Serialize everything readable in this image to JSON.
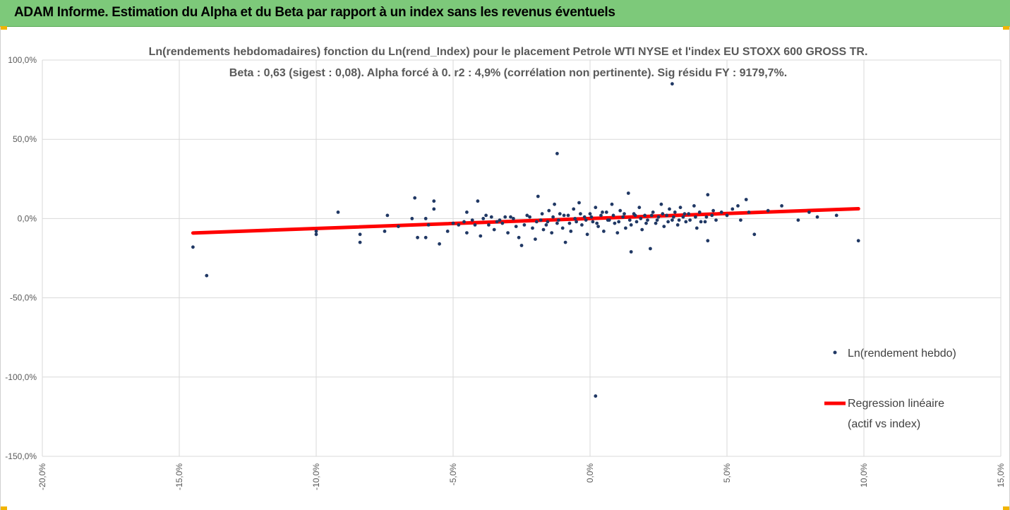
{
  "header": {
    "title": "ADAM Informe. Estimation du Alpha et du Beta par rapport à un index sans les revenus éventuels"
  },
  "chart_data": {
    "type": "scatter",
    "title_line1": "Ln(rendements hebdomadaires) fonction du Ln(rend_Index) pour le placement Petrole WTI NYSE et l'index EU STOXX 600 GROSS TR.",
    "title_line2": "Beta : 0,63 (sigest : 0,08).  Alpha forcé à 0. r2 : 4,9% (corrélation non pertinente). Sig résidu FY : 9179,7%.",
    "xlim": [
      -20,
      15
    ],
    "ylim": [
      -150,
      100
    ],
    "x_ticks": [
      "-20,0%",
      "-15,0%",
      "-10,0%",
      "-5,0%",
      "0,0%",
      "5,0%",
      "10,0%",
      "15,0%"
    ],
    "y_ticks": [
      "100,0%",
      "50,0%",
      "0,0%",
      "-50,0%",
      "-100,0%",
      "-150,0%"
    ],
    "grid": true,
    "legend_position": "right",
    "series": [
      {
        "name": "Ln(rendement hebdo)",
        "color": "#203864",
        "points": [
          [
            -14.5,
            -18
          ],
          [
            -14.0,
            -36
          ],
          [
            -10.0,
            -8
          ],
          [
            -10.0,
            -10
          ],
          [
            -9.2,
            4
          ],
          [
            -8.4,
            -10
          ],
          [
            -8.4,
            -15
          ],
          [
            -7.5,
            -8
          ],
          [
            -7.4,
            2
          ],
          [
            -7.0,
            -5
          ],
          [
            -6.5,
            0
          ],
          [
            -6.4,
            13
          ],
          [
            -6.3,
            -12
          ],
          [
            -6.0,
            -12
          ],
          [
            -6.0,
            0
          ],
          [
            -5.9,
            -4
          ],
          [
            -5.7,
            11
          ],
          [
            -5.7,
            6
          ],
          [
            -5.5,
            -16
          ],
          [
            -5.2,
            -8
          ],
          [
            -5.0,
            -3
          ],
          [
            -4.8,
            -4
          ],
          [
            -4.6,
            -2
          ],
          [
            -4.5,
            -9
          ],
          [
            -4.5,
            4
          ],
          [
            -4.2,
            -4
          ],
          [
            -4.1,
            11
          ],
          [
            -4.0,
            -11
          ],
          [
            -3.8,
            2
          ],
          [
            -3.7,
            -4
          ],
          [
            -3.5,
            -7
          ],
          [
            -3.4,
            -2
          ],
          [
            -3.2,
            -3
          ],
          [
            -3.0,
            -9
          ],
          [
            -2.9,
            1
          ],
          [
            -2.7,
            -5
          ],
          [
            -2.6,
            -12
          ],
          [
            -2.5,
            -17
          ],
          [
            -2.4,
            -4
          ],
          [
            -2.3,
            2
          ],
          [
            -2.1,
            -6
          ],
          [
            -2.0,
            -13
          ],
          [
            -1.9,
            14
          ],
          [
            -1.8,
            -1
          ],
          [
            -1.7,
            -7
          ],
          [
            -1.6,
            -4
          ],
          [
            -1.5,
            5
          ],
          [
            -1.4,
            -9
          ],
          [
            -1.3,
            9
          ],
          [
            -1.2,
            41
          ],
          [
            -1.2,
            -3
          ],
          [
            -1.1,
            3
          ],
          [
            -1.0,
            -6
          ],
          [
            -0.9,
            -15
          ],
          [
            -0.8,
            2
          ],
          [
            -0.7,
            -8
          ],
          [
            -0.6,
            6
          ],
          [
            -0.5,
            -2
          ],
          [
            -0.4,
            10
          ],
          [
            -0.3,
            -4
          ],
          [
            -0.2,
            1
          ],
          [
            -0.1,
            -10
          ],
          [
            0.0,
            3
          ],
          [
            0.1,
            -2
          ],
          [
            0.2,
            -112
          ],
          [
            0.2,
            7
          ],
          [
            0.3,
            -5
          ],
          [
            0.4,
            2
          ],
          [
            0.5,
            -8
          ],
          [
            0.6,
            4
          ],
          [
            0.7,
            -1
          ],
          [
            0.8,
            9
          ],
          [
            0.9,
            -3
          ],
          [
            1.0,
            -9
          ],
          [
            1.1,
            5
          ],
          [
            1.2,
            1
          ],
          [
            1.3,
            -6
          ],
          [
            1.4,
            16
          ],
          [
            1.5,
            -4
          ],
          [
            1.5,
            -21
          ],
          [
            1.6,
            3
          ],
          [
            1.7,
            -2
          ],
          [
            1.8,
            7
          ],
          [
            1.9,
            -7
          ],
          [
            2.0,
            2
          ],
          [
            2.1,
            -1
          ],
          [
            2.2,
            -19
          ],
          [
            2.3,
            4
          ],
          [
            2.4,
            -3
          ],
          [
            2.5,
            1
          ],
          [
            2.6,
            9
          ],
          [
            2.7,
            -5
          ],
          [
            2.8,
            2
          ],
          [
            2.9,
            6
          ],
          [
            3.0,
            -1
          ],
          [
            3.0,
            85
          ],
          [
            3.1,
            4
          ],
          [
            3.2,
            -4
          ],
          [
            3.3,
            7
          ],
          [
            3.4,
            1
          ],
          [
            3.5,
            -2
          ],
          [
            3.6,
            3
          ],
          [
            3.8,
            8
          ],
          [
            3.9,
            -6
          ],
          [
            4.0,
            4
          ],
          [
            4.2,
            -2
          ],
          [
            4.3,
            15
          ],
          [
            4.3,
            -14
          ],
          [
            4.5,
            5
          ],
          [
            4.6,
            -1
          ],
          [
            4.8,
            4
          ],
          [
            5.0,
            2
          ],
          [
            5.2,
            6
          ],
          [
            5.4,
            8
          ],
          [
            5.5,
            -1
          ],
          [
            5.7,
            12
          ],
          [
            5.8,
            4
          ],
          [
            6.0,
            -10
          ],
          [
            6.5,
            5
          ],
          [
            7.0,
            8
          ],
          [
            7.6,
            -1
          ],
          [
            8.0,
            4
          ],
          [
            8.3,
            1
          ],
          [
            9.0,
            2
          ],
          [
            9.8,
            -14
          ],
          [
            -4.3,
            -1
          ],
          [
            -3.9,
            0
          ],
          [
            -3.6,
            1
          ],
          [
            -3.3,
            -1
          ],
          [
            -3.1,
            1
          ],
          [
            -2.8,
            0
          ],
          [
            -2.2,
            1
          ],
          [
            -1.95,
            -2
          ],
          [
            -1.75,
            3
          ],
          [
            -1.55,
            -2
          ],
          [
            -1.35,
            1
          ],
          [
            -1.15,
            -1
          ],
          [
            -0.95,
            2
          ],
          [
            -0.75,
            -3
          ],
          [
            -0.55,
            0
          ],
          [
            -0.35,
            3
          ],
          [
            -0.15,
            -1
          ],
          [
            0.05,
            1
          ],
          [
            0.25,
            -3
          ],
          [
            0.45,
            4
          ],
          [
            0.65,
            -1
          ],
          [
            0.85,
            2
          ],
          [
            1.05,
            -2
          ],
          [
            1.25,
            3
          ],
          [
            1.45,
            -1
          ],
          [
            1.65,
            2
          ],
          [
            1.85,
            0
          ],
          [
            2.05,
            -3
          ],
          [
            2.25,
            2
          ],
          [
            2.45,
            -1
          ],
          [
            2.65,
            3
          ],
          [
            2.85,
            -2
          ],
          [
            3.05,
            1
          ],
          [
            3.25,
            -1
          ],
          [
            3.45,
            3
          ],
          [
            3.65,
            -1
          ],
          [
            3.85,
            1
          ],
          [
            4.05,
            -2
          ],
          [
            4.25,
            1
          ],
          [
            4.45,
            2
          ]
        ]
      },
      {
        "name_line1": "Regression linéaire",
        "name_line2": "(actif vs index)",
        "color": "#ff0000",
        "line": {
          "x": [
            -14.5,
            9.8
          ],
          "y": [
            -9.1,
            6.2
          ]
        }
      }
    ]
  }
}
